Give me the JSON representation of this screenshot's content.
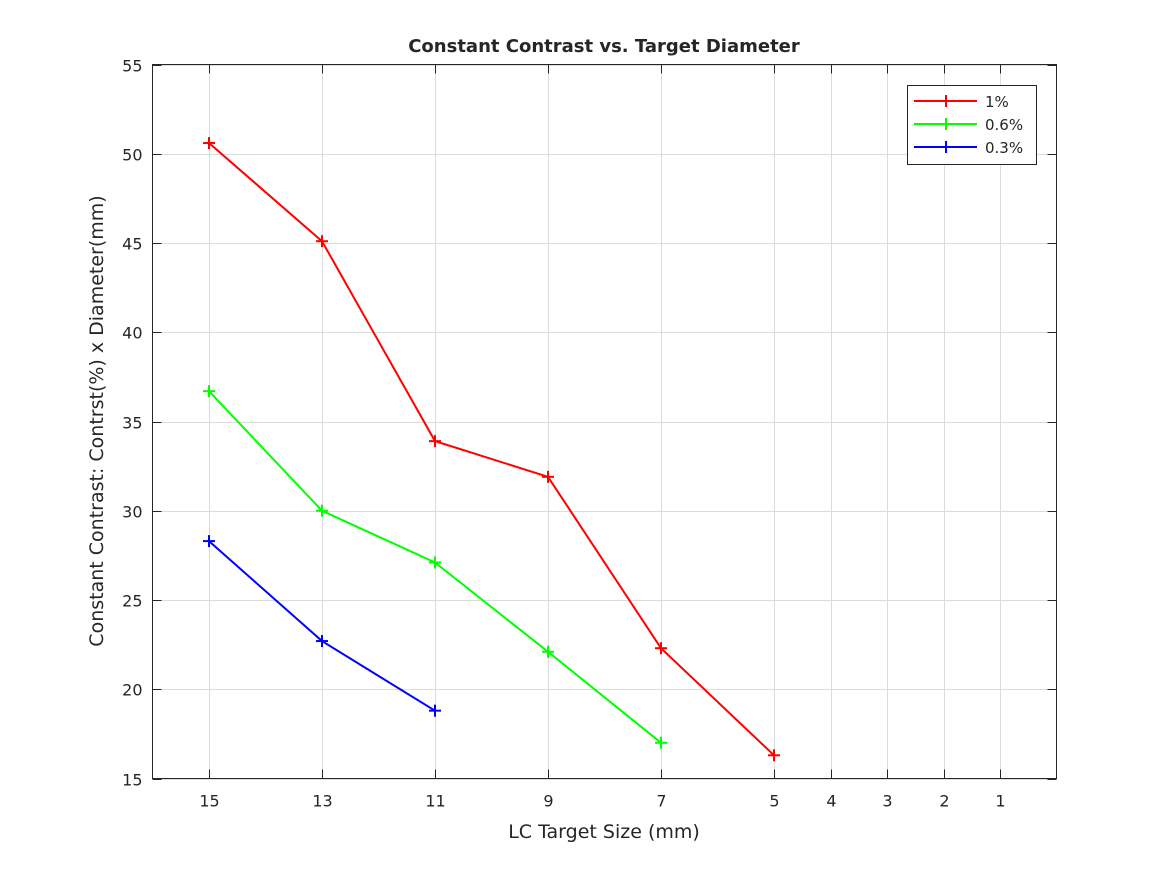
{
  "chart_data": {
    "type": "line",
    "title": "Constant Contrast vs. Target Diameter",
    "xlabel": "LC Target Size (mm)",
    "ylabel": "Constant Contrast: Contrst(%) x Diameter(mm)",
    "xlim": [
      0,
      16
    ],
    "x_reversed": true,
    "ylim": [
      15,
      55
    ],
    "xticks": [
      15,
      13,
      11,
      9,
      7,
      5,
      4,
      3,
      2,
      1
    ],
    "yticks": [
      15,
      20,
      25,
      30,
      35,
      40,
      45,
      50,
      55
    ],
    "grid": true,
    "marker": "+",
    "legend_placement": "top-right",
    "series": [
      {
        "name": "1%",
        "color": "#ff0000",
        "x": [
          15,
          13,
          11,
          9,
          7,
          5
        ],
        "y": [
          50.6,
          45.1,
          33.9,
          31.9,
          22.3,
          16.3
        ]
      },
      {
        "name": "0.6%",
        "color": "#00ff00",
        "x": [
          15,
          13,
          11,
          9,
          7
        ],
        "y": [
          36.7,
          30.0,
          27.1,
          22.1,
          17.0
        ]
      },
      {
        "name": "0.3%",
        "color": "#0000ff",
        "x": [
          15,
          13,
          11
        ],
        "y": [
          28.3,
          22.7,
          18.8
        ]
      }
    ]
  }
}
